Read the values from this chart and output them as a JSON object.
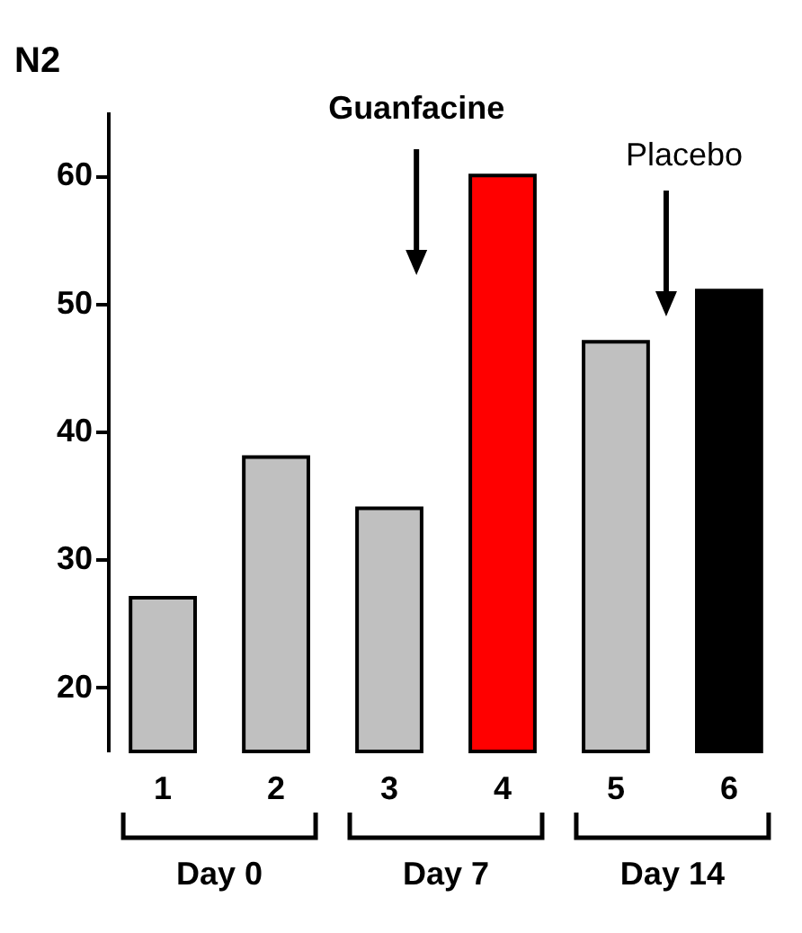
{
  "chart_data": {
    "type": "bar",
    "title": "N2",
    "categories": [
      "1",
      "2",
      "3",
      "4",
      "5",
      "6"
    ],
    "values": [
      27,
      38,
      34,
      60,
      47,
      51
    ],
    "colors": [
      "#c0c0c0",
      "#c0c0c0",
      "#c0c0c0",
      "#ff0000",
      "#c0c0c0",
      "#000000"
    ],
    "ylim": [
      15,
      65
    ],
    "yticks": [
      20,
      30,
      40,
      50,
      60
    ],
    "grid": false,
    "annotations": [
      "Guanfacine",
      "Placebo",
      "Day 0",
      "Day 7",
      "Day 14"
    ]
  }
}
